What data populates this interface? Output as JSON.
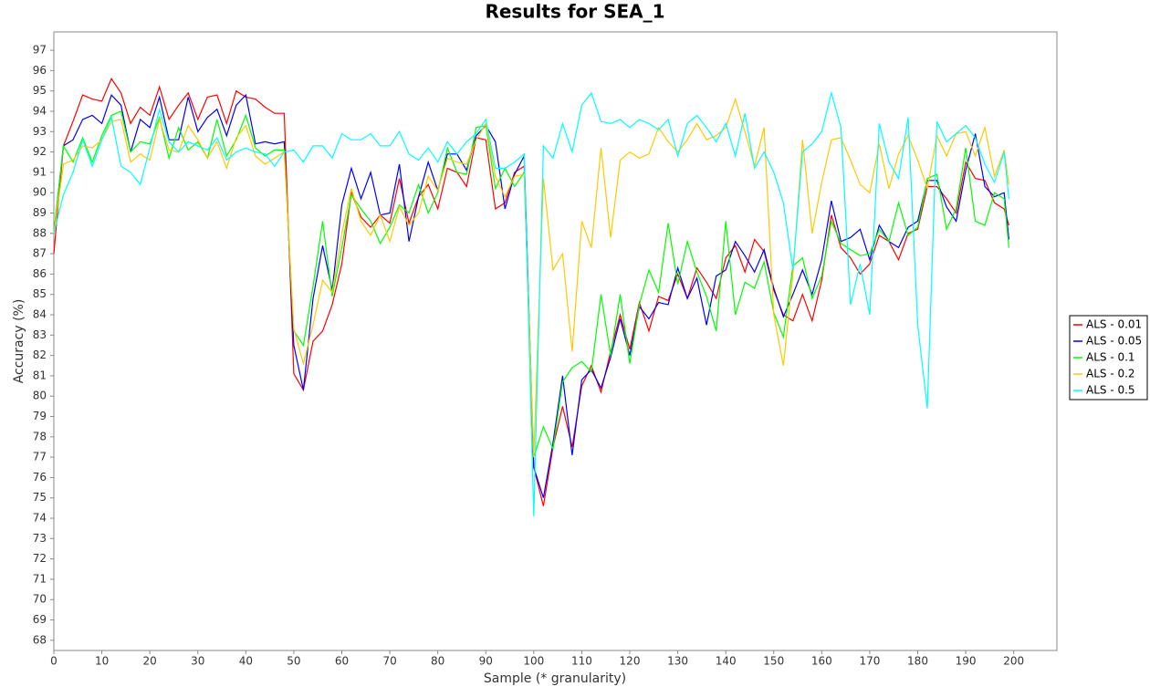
{
  "chart_data": {
    "type": "line",
    "title": "Results for SEA_1",
    "x_label": "Sample (* granularity)",
    "y_label": "Accuracy (%)",
    "xlim": [
      0,
      209
    ],
    "xticks": [
      0,
      10,
      20,
      30,
      40,
      50,
      60,
      70,
      80,
      90,
      100,
      110,
      120,
      130,
      140,
      150,
      160,
      170,
      180,
      190,
      200
    ],
    "ylim": [
      67.5,
      97.9
    ],
    "yticks": [
      68,
      69,
      70,
      71,
      72,
      73,
      74,
      75,
      76,
      77,
      78,
      79,
      80,
      81,
      82,
      83,
      84,
      85,
      86,
      87,
      88,
      89,
      90,
      91,
      92,
      93,
      94,
      95,
      96,
      97
    ],
    "legend": "right",
    "x": [
      0,
      2,
      4,
      6,
      8,
      10,
      12,
      14,
      16,
      18,
      20,
      22,
      24,
      26,
      28,
      30,
      32,
      34,
      36,
      38,
      40,
      42,
      44,
      46,
      48,
      50,
      52,
      54,
      56,
      58,
      60,
      62,
      64,
      66,
      68,
      70,
      72,
      74,
      76,
      78,
      80,
      82,
      84,
      86,
      88,
      90,
      92,
      94,
      96,
      98,
      100,
      102,
      104,
      106,
      108,
      110,
      112,
      114,
      116,
      118,
      120,
      122,
      124,
      126,
      128,
      130,
      132,
      134,
      136,
      138,
      140,
      142,
      144,
      146,
      148,
      150,
      152,
      154,
      156,
      158,
      160,
      162,
      164,
      166,
      168,
      170,
      172,
      174,
      176,
      178,
      180,
      182,
      184,
      186,
      188,
      190,
      192,
      194,
      196,
      198,
      199
    ],
    "series": [
      {
        "name": "ALS - 0.01",
        "color": "#ff0000",
        "values": [
          87,
          92.3,
          93.5,
          94.8,
          94.6,
          94.5,
          95.6,
          94.9,
          93.4,
          94.2,
          93.8,
          95.2,
          93.6,
          94.3,
          94.9,
          93.6,
          94.7,
          94.8,
          93.4,
          95,
          94.7,
          94.6,
          94.2,
          93.9,
          93.9,
          81.1,
          80.3,
          82.7,
          83.2,
          84.5,
          86.5,
          90,
          88.8,
          88.3,
          88.9,
          88.5,
          90.7,
          88.5,
          89.8,
          90.4,
          89.2,
          91.2,
          91,
          90.3,
          92.7,
          92.6,
          89.2,
          89.5,
          91,
          91.3,
          76.5,
          74.6,
          77.5,
          79.5,
          77.5,
          80.5,
          81.5,
          80.2,
          82.2,
          84,
          82.3,
          84.6,
          83.2,
          84.9,
          84.7,
          86,
          84.8,
          86.3,
          85.6,
          84.8,
          86.8,
          87.4,
          86.1,
          87.7,
          87.1,
          85.2,
          84,
          83.7,
          85,
          83.7,
          85.7,
          88.9,
          87.3,
          86.8,
          86,
          86.5,
          87.9,
          87.6,
          86.7,
          88,
          88.2,
          90.3,
          90.3,
          89.7,
          89,
          91.5,
          90.7,
          90.6,
          89.5,
          89.2,
          88.4
        ]
      },
      {
        "name": "ALS - 0.05",
        "color": "#0000ff",
        "values": [
          88,
          92.3,
          92.6,
          93.6,
          93.8,
          93.4,
          94.8,
          94.3,
          92,
          93.6,
          93.2,
          94.7,
          92.6,
          92.6,
          94.7,
          93,
          93.7,
          94.1,
          92.8,
          94.3,
          94.8,
          92.4,
          92.5,
          92.4,
          92.5,
          82.5,
          80.3,
          84.8,
          87.4,
          85.2,
          89.4,
          91.2,
          89.7,
          91,
          88.9,
          89,
          91.4,
          87.6,
          89.8,
          91.5,
          90.1,
          91.9,
          91.9,
          91.1,
          92.8,
          93.3,
          92.5,
          89.2,
          90.9,
          91.8,
          76.5,
          75,
          77.7,
          81,
          77.1,
          80.8,
          81.3,
          80.4,
          81.9,
          83.8,
          82,
          84.4,
          83.8,
          84.6,
          84.5,
          86.3,
          84.8,
          85.8,
          83.5,
          85.9,
          86.2,
          87.6,
          86.9,
          86.1,
          87.2,
          85.3,
          83.9,
          85,
          86.2,
          85,
          86.7,
          89.6,
          87.6,
          87.8,
          88.2,
          86.7,
          88.4,
          87.6,
          87.3,
          88.3,
          88.6,
          90.6,
          90.6,
          89.3,
          88.6,
          91.1,
          92.9,
          90.3,
          89.8,
          90,
          87.7
        ]
      },
      {
        "name": "ALS - 0.1",
        "color": "#00ff00",
        "values": [
          88,
          92.3,
          91.5,
          92.7,
          91.5,
          92.8,
          93.8,
          94,
          92,
          92.5,
          92.4,
          93.7,
          91.7,
          93.2,
          92.1,
          92.5,
          91.7,
          93.6,
          91.8,
          92.6,
          93.8,
          92.2,
          91.8,
          92.1,
          92.1,
          83.2,
          82.5,
          85.4,
          88.6,
          84.9,
          87.3,
          89.9,
          89.2,
          88.6,
          87.5,
          88.3,
          89.4,
          89,
          90.4,
          89,
          90,
          92.2,
          91,
          90.9,
          93.2,
          93.3,
          90.2,
          91.2,
          90.3,
          91,
          77,
          78.5,
          77.4,
          80.7,
          81.4,
          81.7,
          81.2,
          85,
          82,
          85,
          81.6,
          84.5,
          86.2,
          85.1,
          88.5,
          85.5,
          87.6,
          86.1,
          84.9,
          83.2,
          88.6,
          84,
          85.6,
          85.3,
          86.6,
          84.1,
          82.9,
          86.4,
          86.8,
          84.8,
          85.9,
          88.6,
          87.5,
          87.2,
          86.9,
          87,
          88.2,
          87.6,
          89.5,
          87.9,
          88.3,
          90.7,
          90.9,
          88.2,
          89.2,
          92.2,
          88.6,
          88.4,
          90,
          89.7,
          87.3
        ]
      },
      {
        "name": "ALS - 0.2",
        "color": "#ffc800",
        "values": [
          88,
          91.4,
          91.6,
          92.3,
          92.2,
          92.6,
          93.5,
          93.6,
          91.5,
          91.9,
          91.6,
          93.6,
          92.1,
          92,
          93.3,
          92.6,
          91.7,
          92.5,
          91.2,
          92.7,
          93.3,
          91.8,
          91.4,
          91.7,
          92,
          83.3,
          81.6,
          83.5,
          85.7,
          85.1,
          88,
          90.2,
          88.6,
          87.9,
          88.9,
          87.6,
          89.3,
          88.4,
          89,
          90.8,
          90.1,
          91.7,
          91.5,
          91.4,
          92.6,
          93.4,
          90.8,
          89.8,
          90.8,
          90.9,
          77,
          90.7,
          86.2,
          87,
          82.2,
          88.6,
          87.3,
          92.2,
          87.8,
          91.6,
          92,
          91.7,
          91.9,
          93.2,
          92.5,
          92,
          92.6,
          93.4,
          92.6,
          92.8,
          93.2,
          94.6,
          93,
          91.3,
          93.2,
          84,
          81.5,
          86,
          92.6,
          88,
          90.5,
          92.6,
          92.7,
          91.6,
          90.4,
          90,
          92.4,
          90.2,
          91.9,
          92.8,
          91.6,
          90.2,
          92.8,
          91.8,
          92.9,
          93,
          91.8,
          93.2,
          90.8,
          92.1,
          90.4
        ]
      },
      {
        "name": "ALS - 0.5",
        "color": "#00ffff",
        "values": [
          88,
          89.9,
          91,
          92.6,
          91.3,
          92.6,
          93.7,
          91.3,
          91,
          90.4,
          92.2,
          94.1,
          92.5,
          92,
          92.5,
          92.3,
          92.1,
          92.7,
          91.6,
          92,
          92.2,
          92,
          91.9,
          91.3,
          92,
          92.1,
          91.5,
          92.3,
          92.3,
          91.7,
          92.9,
          92.6,
          92.6,
          92.9,
          92.3,
          92.3,
          93,
          91.9,
          91.6,
          92.2,
          91.5,
          92.5,
          91.9,
          92.5,
          92.9,
          93.6,
          91.2,
          91.2,
          91.5,
          91.9,
          74.1,
          92.3,
          91.7,
          93.4,
          92,
          94.3,
          94.9,
          93.5,
          93.4,
          93.6,
          93.2,
          93.6,
          93.4,
          93.1,
          93.6,
          91.8,
          93.4,
          93.8,
          93.2,
          92.5,
          93.4,
          91.8,
          93.9,
          91.2,
          92,
          91,
          89.5,
          86.2,
          92,
          92.4,
          93,
          94.9,
          93.2,
          84.5,
          86.5,
          84,
          93.4,
          91.5,
          90.7,
          93.7,
          83.5,
          79.4,
          93.5,
          92.5,
          92.9,
          93.3,
          92.7,
          91.4,
          90.5,
          92,
          89.7
        ]
      }
    ]
  }
}
